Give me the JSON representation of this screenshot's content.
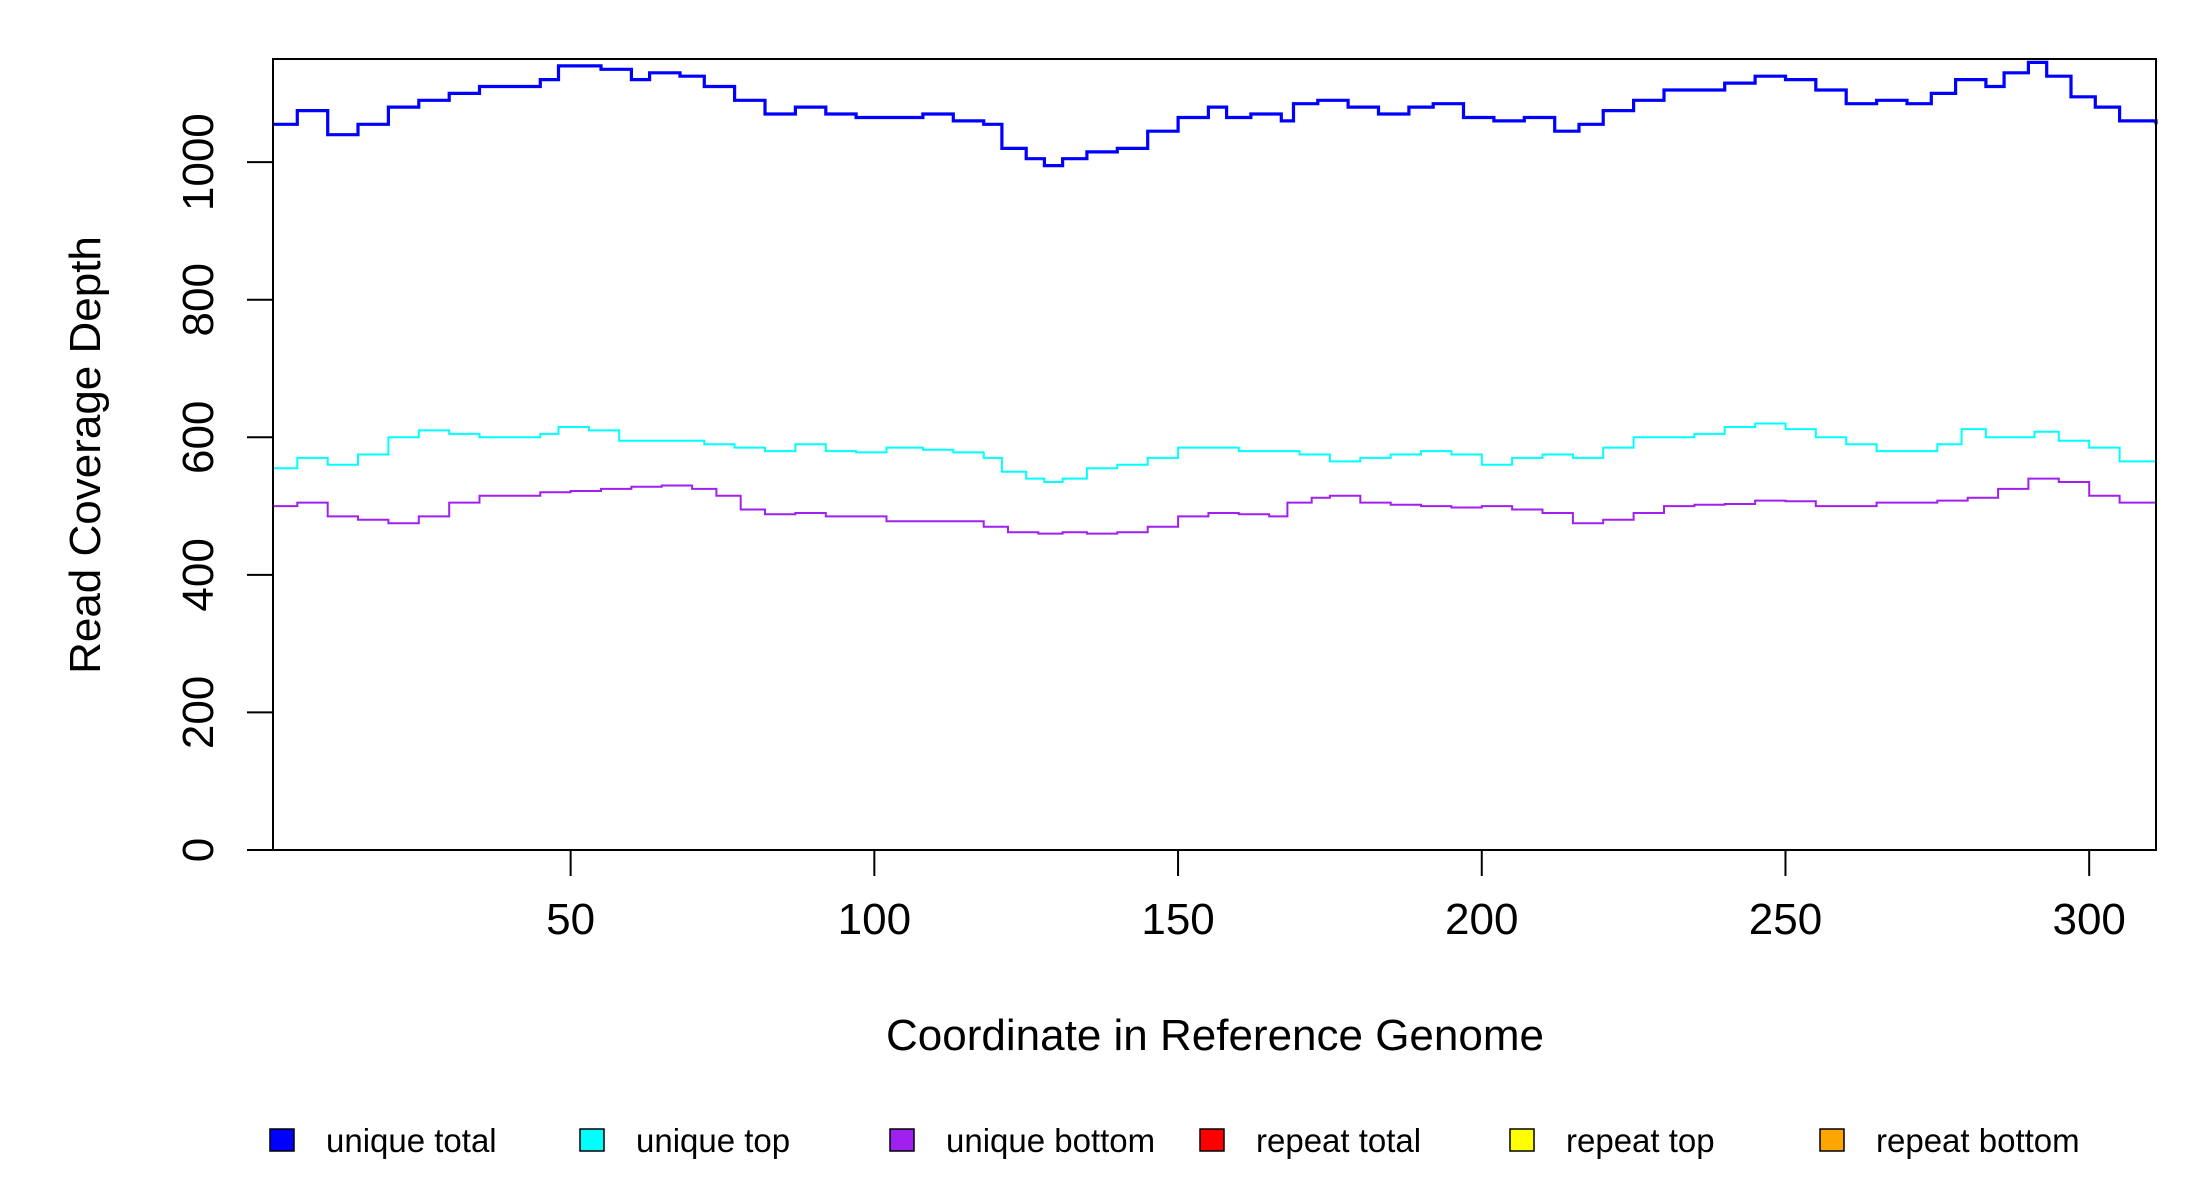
{
  "chart_data": {
    "type": "line",
    "title": "",
    "xlabel": "Coordinate in Reference Genome",
    "ylabel": "Read Coverage Depth",
    "xlim": [
      1,
      311
    ],
    "ylim": [
      0,
      1150
    ],
    "xticks": [
      50,
      100,
      150,
      200,
      250,
      300
    ],
    "yticks": [
      0,
      200,
      400,
      600,
      800,
      1000
    ],
    "grid": false,
    "legend_position": "bottom",
    "series": [
      {
        "name": "unique total",
        "color": "#0000ff",
        "points": [
          [
            1,
            1055
          ],
          [
            5,
            1075
          ],
          [
            10,
            1040
          ],
          [
            15,
            1055
          ],
          [
            20,
            1080
          ],
          [
            25,
            1090
          ],
          [
            30,
            1100
          ],
          [
            35,
            1110
          ],
          [
            40,
            1110
          ],
          [
            45,
            1120
          ],
          [
            48,
            1140
          ],
          [
            55,
            1135
          ],
          [
            60,
            1120
          ],
          [
            63,
            1130
          ],
          [
            68,
            1125
          ],
          [
            72,
            1110
          ],
          [
            77,
            1090
          ],
          [
            82,
            1070
          ],
          [
            87,
            1080
          ],
          [
            92,
            1070
          ],
          [
            97,
            1065
          ],
          [
            102,
            1065
          ],
          [
            108,
            1070
          ],
          [
            113,
            1060
          ],
          [
            118,
            1055
          ],
          [
            121,
            1020
          ],
          [
            125,
            1005
          ],
          [
            128,
            995
          ],
          [
            131,
            1005
          ],
          [
            135,
            1015
          ],
          [
            140,
            1020
          ],
          [
            145,
            1045
          ],
          [
            150,
            1065
          ],
          [
            155,
            1080
          ],
          [
            158,
            1065
          ],
          [
            162,
            1070
          ],
          [
            167,
            1060
          ],
          [
            169,
            1085
          ],
          [
            173,
            1090
          ],
          [
            178,
            1080
          ],
          [
            183,
            1070
          ],
          [
            188,
            1080
          ],
          [
            192,
            1085
          ],
          [
            197,
            1065
          ],
          [
            202,
            1060
          ],
          [
            207,
            1065
          ],
          [
            212,
            1045
          ],
          [
            216,
            1055
          ],
          [
            220,
            1075
          ],
          [
            225,
            1090
          ],
          [
            230,
            1105
          ],
          [
            235,
            1105
          ],
          [
            240,
            1115
          ],
          [
            245,
            1125
          ],
          [
            250,
            1120
          ],
          [
            255,
            1105
          ],
          [
            260,
            1085
          ],
          [
            265,
            1090
          ],
          [
            270,
            1085
          ],
          [
            274,
            1100
          ],
          [
            278,
            1120
          ],
          [
            283,
            1110
          ],
          [
            286,
            1130
          ],
          [
            290,
            1145
          ],
          [
            293,
            1125
          ],
          [
            297,
            1095
          ],
          [
            301,
            1080
          ],
          [
            305,
            1060
          ],
          [
            311,
            1055
          ]
        ]
      },
      {
        "name": "unique top",
        "color": "#00ffff",
        "points": [
          [
            1,
            555
          ],
          [
            5,
            570
          ],
          [
            10,
            560
          ],
          [
            15,
            575
          ],
          [
            20,
            600
          ],
          [
            25,
            610
          ],
          [
            30,
            605
          ],
          [
            35,
            600
          ],
          [
            40,
            600
          ],
          [
            45,
            605
          ],
          [
            48,
            615
          ],
          [
            53,
            610
          ],
          [
            58,
            595
          ],
          [
            63,
            595
          ],
          [
            68,
            595
          ],
          [
            72,
            590
          ],
          [
            77,
            585
          ],
          [
            82,
            580
          ],
          [
            87,
            590
          ],
          [
            92,
            580
          ],
          [
            97,
            578
          ],
          [
            102,
            585
          ],
          [
            108,
            582
          ],
          [
            113,
            578
          ],
          [
            118,
            570
          ],
          [
            121,
            550
          ],
          [
            125,
            540
          ],
          [
            128,
            535
          ],
          [
            131,
            540
          ],
          [
            135,
            555
          ],
          [
            140,
            560
          ],
          [
            145,
            570
          ],
          [
            150,
            585
          ],
          [
            155,
            585
          ],
          [
            160,
            580
          ],
          [
            165,
            580
          ],
          [
            170,
            575
          ],
          [
            175,
            565
          ],
          [
            180,
            570
          ],
          [
            185,
            575
          ],
          [
            190,
            580
          ],
          [
            195,
            575
          ],
          [
            200,
            560
          ],
          [
            205,
            570
          ],
          [
            210,
            575
          ],
          [
            215,
            570
          ],
          [
            220,
            585
          ],
          [
            225,
            600
          ],
          [
            230,
            600
          ],
          [
            235,
            605
          ],
          [
            240,
            615
          ],
          [
            245,
            620
          ],
          [
            250,
            612
          ],
          [
            255,
            600
          ],
          [
            260,
            590
          ],
          [
            265,
            580
          ],
          [
            270,
            580
          ],
          [
            275,
            590
          ],
          [
            279,
            612
          ],
          [
            283,
            600
          ],
          [
            287,
            600
          ],
          [
            291,
            608
          ],
          [
            295,
            595
          ],
          [
            300,
            585
          ],
          [
            305,
            565
          ],
          [
            311,
            555
          ]
        ]
      },
      {
        "name": "unique bottom",
        "color": "#a020f0",
        "points": [
          [
            1,
            500
          ],
          [
            5,
            505
          ],
          [
            10,
            485
          ],
          [
            15,
            480
          ],
          [
            20,
            475
          ],
          [
            25,
            485
          ],
          [
            30,
            505
          ],
          [
            35,
            515
          ],
          [
            40,
            515
          ],
          [
            45,
            520
          ],
          [
            50,
            522
          ],
          [
            55,
            525
          ],
          [
            60,
            528
          ],
          [
            65,
            530
          ],
          [
            70,
            525
          ],
          [
            74,
            515
          ],
          [
            78,
            495
          ],
          [
            82,
            488
          ],
          [
            87,
            490
          ],
          [
            92,
            485
          ],
          [
            97,
            485
          ],
          [
            102,
            478
          ],
          [
            108,
            478
          ],
          [
            113,
            478
          ],
          [
            118,
            470
          ],
          [
            122,
            462
          ],
          [
            127,
            460
          ],
          [
            131,
            462
          ],
          [
            135,
            460
          ],
          [
            140,
            462
          ],
          [
            145,
            470
          ],
          [
            150,
            485
          ],
          [
            155,
            490
          ],
          [
            160,
            488
          ],
          [
            165,
            485
          ],
          [
            168,
            505
          ],
          [
            172,
            512
          ],
          [
            175,
            515
          ],
          [
            180,
            505
          ],
          [
            185,
            502
          ],
          [
            190,
            500
          ],
          [
            195,
            498
          ],
          [
            200,
            500
          ],
          [
            205,
            495
          ],
          [
            210,
            490
          ],
          [
            215,
            475
          ],
          [
            220,
            480
          ],
          [
            225,
            490
          ],
          [
            230,
            500
          ],
          [
            235,
            502
          ],
          [
            240,
            503
          ],
          [
            245,
            508
          ],
          [
            250,
            507
          ],
          [
            255,
            500
          ],
          [
            260,
            500
          ],
          [
            265,
            505
          ],
          [
            270,
            505
          ],
          [
            275,
            508
          ],
          [
            280,
            512
          ],
          [
            285,
            525
          ],
          [
            290,
            540
          ],
          [
            295,
            535
          ],
          [
            300,
            515
          ],
          [
            305,
            505
          ],
          [
            311,
            500
          ]
        ]
      },
      {
        "name": "repeat total",
        "color": "#ff0000",
        "points": [
          [
            1,
            0
          ],
          [
            311,
            0
          ]
        ]
      },
      {
        "name": "repeat top",
        "color": "#ffff00",
        "points": [
          [
            1,
            0
          ],
          [
            311,
            0
          ]
        ]
      },
      {
        "name": "repeat bottom",
        "color": "#ffa500",
        "points": [
          [
            1,
            0
          ],
          [
            311,
            0
          ]
        ]
      }
    ]
  }
}
